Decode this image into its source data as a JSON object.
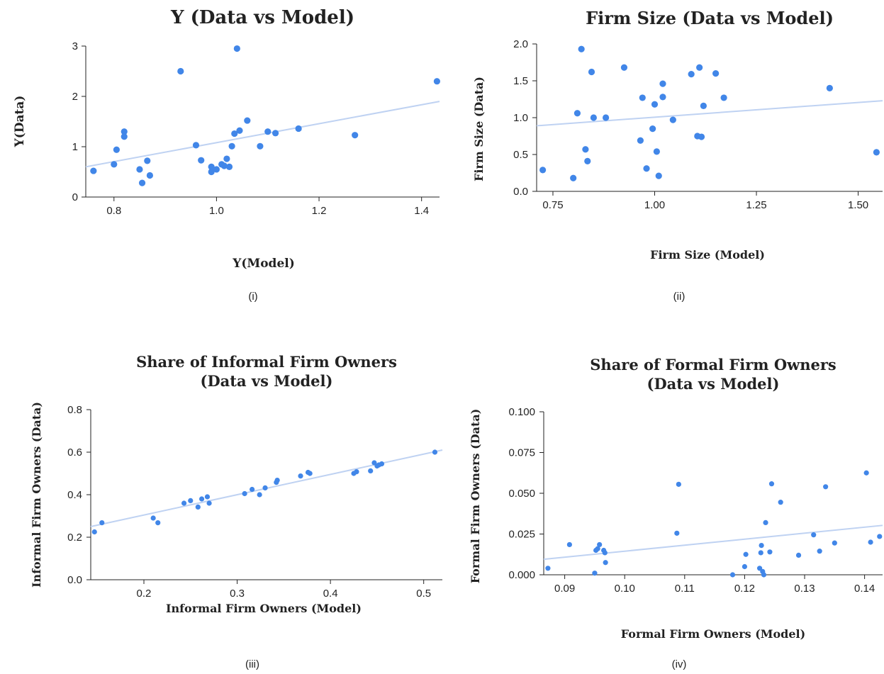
{
  "chart_data": [
    {
      "type": "scatter",
      "title": [
        "Y (Data vs Model)"
      ],
      "xlabel": "Y(Model)",
      "ylabel": "Y(Data)",
      "caption": "(i)",
      "xlim": [
        0.745,
        1.435
      ],
      "ylim": [
        0,
        3
      ],
      "xticks": [
        0.8,
        1.0,
        1.2,
        1.4
      ],
      "xtick_labels": [
        "0.8",
        "1.0",
        "1.2",
        "1.4"
      ],
      "yticks": [
        0,
        1,
        2,
        3
      ],
      "ytick_labels": [
        "0",
        "1",
        "2",
        "3"
      ],
      "grid": false,
      "trendline": [
        [
          0.745,
          0.6
        ],
        [
          1.435,
          1.9
        ]
      ],
      "x": [
        0.76,
        0.8,
        0.805,
        0.82,
        0.82,
        0.85,
        0.855,
        0.865,
        0.87,
        0.93,
        0.96,
        0.97,
        0.99,
        0.99,
        1.0,
        1.01,
        1.015,
        1.02,
        1.025,
        1.03,
        1.035,
        1.04,
        1.045,
        1.06,
        1.085,
        1.1,
        1.115,
        1.16,
        1.27,
        1.43
      ],
      "y": [
        0.52,
        0.65,
        0.94,
        1.2,
        1.3,
        0.55,
        0.28,
        0.72,
        0.43,
        2.5,
        1.03,
        0.73,
        0.6,
        0.5,
        0.55,
        0.65,
        0.62,
        0.76,
        0.6,
        1.01,
        1.26,
        2.95,
        1.32,
        1.52,
        1.01,
        1.3,
        1.27,
        1.36,
        1.23,
        2.3
      ]
    },
    {
      "type": "scatter",
      "title": [
        "Firm Size (Data vs Model)"
      ],
      "xlabel": "Firm Size (Model)",
      "ylabel": "Firm Size (Data)",
      "caption": "(ii)",
      "xlim": [
        0.71,
        1.56
      ],
      "ylim": [
        0,
        2.0
      ],
      "xticks": [
        0.75,
        1.0,
        1.25,
        1.5
      ],
      "xtick_labels": [
        "0.75",
        "1.00",
        "1.25",
        "1.50"
      ],
      "yticks": [
        0,
        0.5,
        1.0,
        1.5,
        2.0
      ],
      "ytick_labels": [
        "0.0",
        "0.5",
        "1.0",
        "1.5",
        "2.0"
      ],
      "grid": false,
      "trendline": [
        [
          0.71,
          0.89
        ],
        [
          1.56,
          1.23
        ]
      ],
      "x": [
        0.725,
        0.8,
        0.81,
        0.82,
        0.83,
        0.835,
        0.845,
        0.85,
        0.88,
        0.925,
        0.965,
        0.97,
        0.98,
        0.995,
        1.0,
        1.005,
        1.01,
        1.02,
        1.02,
        1.045,
        1.09,
        1.105,
        1.11,
        1.115,
        1.12,
        1.15,
        1.17,
        1.43,
        1.545
      ],
      "y": [
        0.29,
        0.18,
        1.06,
        1.93,
        0.57,
        0.41,
        1.62,
        1.0,
        1.0,
        1.68,
        0.69,
        1.27,
        0.31,
        0.85,
        1.18,
        0.54,
        0.21,
        1.46,
        1.28,
        0.97,
        1.59,
        0.75,
        1.68,
        0.74,
        1.16,
        1.6,
        1.27,
        1.4,
        0.53
      ]
    },
    {
      "type": "scatter",
      "title": [
        "Share of Informal Firm Owners",
        "(Data vs Model)"
      ],
      "xlabel": "Informal Firm Owners (Model)",
      "ylabel": "Informal Firm Owners (Data)",
      "caption": "(iii)",
      "xlim": [
        0.143,
        0.52
      ],
      "ylim": [
        0,
        0.8
      ],
      "xticks": [
        0.2,
        0.3,
        0.4,
        0.5
      ],
      "xtick_labels": [
        "0.2",
        "0.3",
        "0.4",
        "0.5"
      ],
      "yticks": [
        0,
        0.2,
        0.4,
        0.6,
        0.8
      ],
      "ytick_labels": [
        "0.0",
        "0.2",
        "0.4",
        "0.6",
        "0.8"
      ],
      "grid": false,
      "trendline": [
        [
          0.143,
          0.25
        ],
        [
          0.52,
          0.61
        ]
      ],
      "x": [
        0.147,
        0.155,
        0.21,
        0.215,
        0.243,
        0.25,
        0.258,
        0.262,
        0.268,
        0.27,
        0.308,
        0.316,
        0.324,
        0.33,
        0.342,
        0.343,
        0.368,
        0.376,
        0.378,
        0.425,
        0.428,
        0.443,
        0.447,
        0.45,
        0.452,
        0.455,
        0.512
      ],
      "y": [
        0.225,
        0.268,
        0.29,
        0.268,
        0.36,
        0.372,
        0.342,
        0.38,
        0.39,
        0.36,
        0.405,
        0.425,
        0.4,
        0.432,
        0.458,
        0.468,
        0.488,
        0.505,
        0.5,
        0.5,
        0.508,
        0.512,
        0.55,
        0.535,
        0.54,
        0.545,
        0.6
      ]
    },
    {
      "type": "scatter",
      "title": [
        "Share of Formal Firm Owners",
        "(Data vs Model)"
      ],
      "xlabel": "Formal Firm Owners (Model)",
      "ylabel": "Formal Firm Owners (Data)",
      "caption": "(iv)",
      "xlim": [
        0.0865,
        0.143
      ],
      "ylim": [
        0,
        0.1
      ],
      "xticks": [
        0.09,
        0.1,
        0.11,
        0.12,
        0.13,
        0.14
      ],
      "xtick_labels": [
        "0.09",
        "0.10",
        "0.11",
        "0.12",
        "0.13",
        "0.14"
      ],
      "yticks": [
        0,
        0.025,
        0.05,
        0.075,
        0.1
      ],
      "ytick_labels": [
        "0.000",
        "0.025",
        "0.050",
        "0.075",
        "0.100"
      ],
      "grid": false,
      "trendline": [
        [
          0.0865,
          0.0095
        ],
        [
          0.143,
          0.0303
        ]
      ],
      "x": [
        0.0872,
        0.0908,
        0.095,
        0.0952,
        0.0955,
        0.0958,
        0.0965,
        0.0967,
        0.0968,
        0.1087,
        0.109,
        0.118,
        0.12,
        0.1202,
        0.1225,
        0.1227,
        0.1228,
        0.123,
        0.1232,
        0.1235,
        0.1242,
        0.1245,
        0.126,
        0.129,
        0.1315,
        0.1325,
        0.1335,
        0.135,
        0.1403,
        0.141,
        0.1425
      ],
      "y": [
        0.004,
        0.0185,
        0.001,
        0.015,
        0.016,
        0.0185,
        0.015,
        0.0135,
        0.0075,
        0.0255,
        0.0555,
        0.0,
        0.005,
        0.0125,
        0.004,
        0.0135,
        0.018,
        0.002,
        0.0,
        0.032,
        0.014,
        0.0558,
        0.0445,
        0.012,
        0.0245,
        0.0145,
        0.054,
        0.0195,
        0.0625,
        0.02,
        0.0235
      ]
    }
  ]
}
